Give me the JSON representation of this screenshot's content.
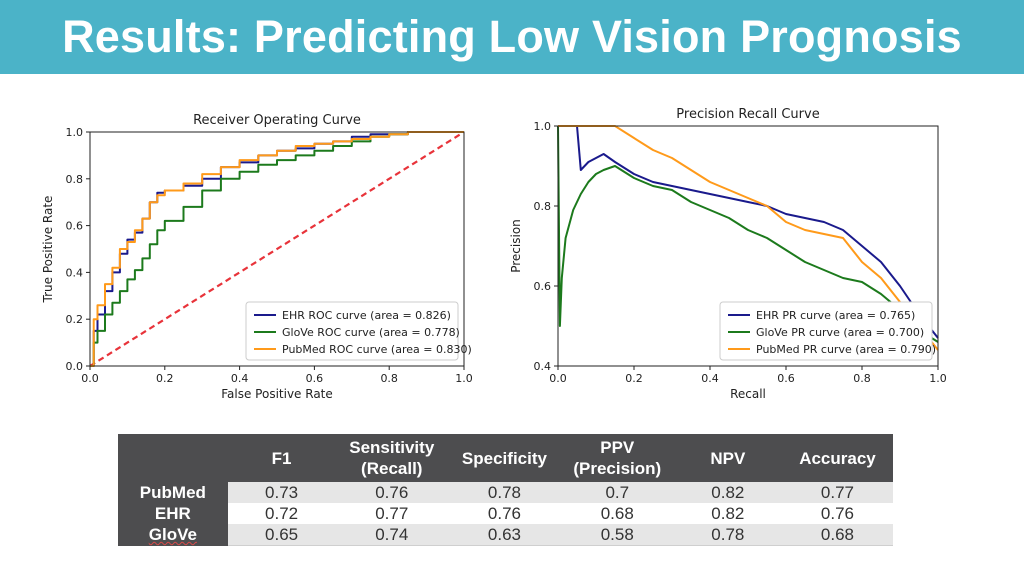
{
  "page": {
    "title": "Results: Predicting Low Vision Prognosis"
  },
  "chart_data": [
    {
      "type": "line",
      "title": "Receiver Operating Curve",
      "xlabel": "False Positive Rate",
      "ylabel": "True Positive Rate",
      "xlim": [
        0,
        1.0
      ],
      "ylim": [
        0,
        1.0
      ],
      "xticks": [
        "0.0",
        "0.2",
        "0.4",
        "0.6",
        "0.8",
        "1.0"
      ],
      "yticks": [
        "0.0",
        "0.2",
        "0.4",
        "0.6",
        "0.8",
        "1.0"
      ],
      "grid": false,
      "legend_position": "lower-right",
      "reference_line": {
        "x": [
          0,
          1
        ],
        "y": [
          0,
          1
        ],
        "color": "#e8333a",
        "style": "dashed"
      },
      "series": [
        {
          "name": "EHR ROC curve (area = 0.826)",
          "color": "#1a1a8c",
          "x": [
            0,
            0.01,
            0.02,
            0.04,
            0.06,
            0.08,
            0.1,
            0.12,
            0.14,
            0.16,
            0.18,
            0.2,
            0.25,
            0.3,
            0.35,
            0.4,
            0.45,
            0.5,
            0.55,
            0.6,
            0.65,
            0.7,
            0.75,
            0.8,
            0.85,
            0.9,
            0.95,
            1.0
          ],
          "y": [
            0,
            0.15,
            0.22,
            0.32,
            0.4,
            0.48,
            0.54,
            0.57,
            0.63,
            0.7,
            0.74,
            0.75,
            0.77,
            0.8,
            0.85,
            0.87,
            0.9,
            0.92,
            0.93,
            0.95,
            0.96,
            0.98,
            0.99,
            0.99,
            1.0,
            1.0,
            1.0,
            1.0
          ]
        },
        {
          "name": "GloVe ROC curve (area = 0.778)",
          "color": "#1c7a1c",
          "x": [
            0,
            0.01,
            0.02,
            0.04,
            0.06,
            0.08,
            0.1,
            0.12,
            0.14,
            0.16,
            0.18,
            0.2,
            0.25,
            0.3,
            0.35,
            0.4,
            0.45,
            0.5,
            0.55,
            0.6,
            0.65,
            0.7,
            0.75,
            0.8,
            0.85,
            0.9,
            0.95,
            1.0
          ],
          "y": [
            0,
            0.1,
            0.15,
            0.22,
            0.27,
            0.32,
            0.37,
            0.41,
            0.46,
            0.52,
            0.58,
            0.62,
            0.68,
            0.75,
            0.8,
            0.83,
            0.86,
            0.88,
            0.9,
            0.92,
            0.94,
            0.96,
            0.98,
            0.99,
            1.0,
            1.0,
            1.0,
            1.0
          ]
        },
        {
          "name": "PubMed ROC curve (area = 0.830)",
          "color": "#ff9a1a",
          "x": [
            0,
            0.01,
            0.02,
            0.04,
            0.06,
            0.08,
            0.1,
            0.12,
            0.14,
            0.16,
            0.18,
            0.2,
            0.25,
            0.3,
            0.35,
            0.4,
            0.45,
            0.5,
            0.55,
            0.6,
            0.65,
            0.7,
            0.75,
            0.8,
            0.85,
            0.9,
            0.95,
            1.0
          ],
          "y": [
            0,
            0.2,
            0.26,
            0.35,
            0.42,
            0.5,
            0.53,
            0.58,
            0.63,
            0.7,
            0.73,
            0.75,
            0.78,
            0.82,
            0.85,
            0.88,
            0.9,
            0.92,
            0.94,
            0.95,
            0.96,
            0.97,
            0.98,
            0.99,
            1.0,
            1.0,
            1.0,
            1.0
          ]
        }
      ]
    },
    {
      "type": "line",
      "title": "Precision Recall Curve",
      "xlabel": "Recall",
      "ylabel": "Precision",
      "xlim": [
        0,
        1.0
      ],
      "ylim": [
        0.4,
        1.0
      ],
      "xticks": [
        "0.0",
        "0.2",
        "0.4",
        "0.6",
        "0.8",
        "1.0"
      ],
      "yticks": [
        "0.4",
        "0.6",
        "0.8",
        "1.0"
      ],
      "grid": false,
      "legend_position": "lower-right",
      "series": [
        {
          "name": "EHR PR curve (area = 0.765)",
          "color": "#1a1a8c",
          "x": [
            0,
            0.01,
            0.05,
            0.06,
            0.08,
            0.1,
            0.12,
            0.15,
            0.2,
            0.25,
            0.3,
            0.35,
            0.4,
            0.45,
            0.5,
            0.55,
            0.6,
            0.65,
            0.7,
            0.75,
            0.8,
            0.85,
            0.9,
            0.95,
            1.0
          ],
          "y": [
            1.0,
            1.0,
            1.0,
            0.89,
            0.91,
            0.92,
            0.93,
            0.91,
            0.88,
            0.86,
            0.85,
            0.84,
            0.83,
            0.82,
            0.81,
            0.8,
            0.78,
            0.77,
            0.76,
            0.74,
            0.7,
            0.66,
            0.6,
            0.53,
            0.47
          ]
        },
        {
          "name": "GloVe PR curve (area = 0.700)",
          "color": "#1c7a1c",
          "x": [
            0,
            0.005,
            0.01,
            0.02,
            0.04,
            0.06,
            0.08,
            0.1,
            0.12,
            0.15,
            0.2,
            0.25,
            0.3,
            0.35,
            0.4,
            0.45,
            0.5,
            0.55,
            0.6,
            0.65,
            0.7,
            0.75,
            0.8,
            0.85,
            0.9,
            0.95,
            1.0
          ],
          "y": [
            1.0,
            0.5,
            0.62,
            0.72,
            0.79,
            0.83,
            0.86,
            0.88,
            0.89,
            0.9,
            0.87,
            0.85,
            0.84,
            0.81,
            0.79,
            0.77,
            0.74,
            0.72,
            0.69,
            0.66,
            0.64,
            0.62,
            0.61,
            0.58,
            0.54,
            0.49,
            0.46
          ]
        },
        {
          "name": "PubMed PR curve (area = 0.790)",
          "color": "#ff9a1a",
          "x": [
            0,
            0.01,
            0.05,
            0.1,
            0.15,
            0.2,
            0.25,
            0.3,
            0.35,
            0.4,
            0.45,
            0.5,
            0.55,
            0.6,
            0.65,
            0.7,
            0.75,
            0.8,
            0.85,
            0.9,
            0.95,
            1.0
          ],
          "y": [
            1.0,
            1.0,
            1.0,
            1.0,
            1.0,
            0.97,
            0.94,
            0.92,
            0.89,
            0.86,
            0.84,
            0.82,
            0.8,
            0.76,
            0.74,
            0.73,
            0.72,
            0.66,
            0.62,
            0.56,
            0.5,
            0.44
          ]
        }
      ]
    }
  ],
  "table": {
    "columns": [
      "",
      "F1",
      "Sensitivity\n(Recall)",
      "Specificity",
      "PPV\n(Precision)",
      "NPV",
      "Accuracy"
    ],
    "rows": [
      {
        "label": "PubMed",
        "values": [
          "0.73",
          "0.76",
          "0.78",
          "0.7",
          "0.82",
          "0.77"
        ]
      },
      {
        "label": "EHR",
        "values": [
          "0.72",
          "0.77",
          "0.76",
          "0.68",
          "0.82",
          "0.76"
        ]
      },
      {
        "label": "GloVe",
        "values": [
          "0.65",
          "0.74",
          "0.63",
          "0.58",
          "0.78",
          "0.68"
        ]
      }
    ]
  }
}
